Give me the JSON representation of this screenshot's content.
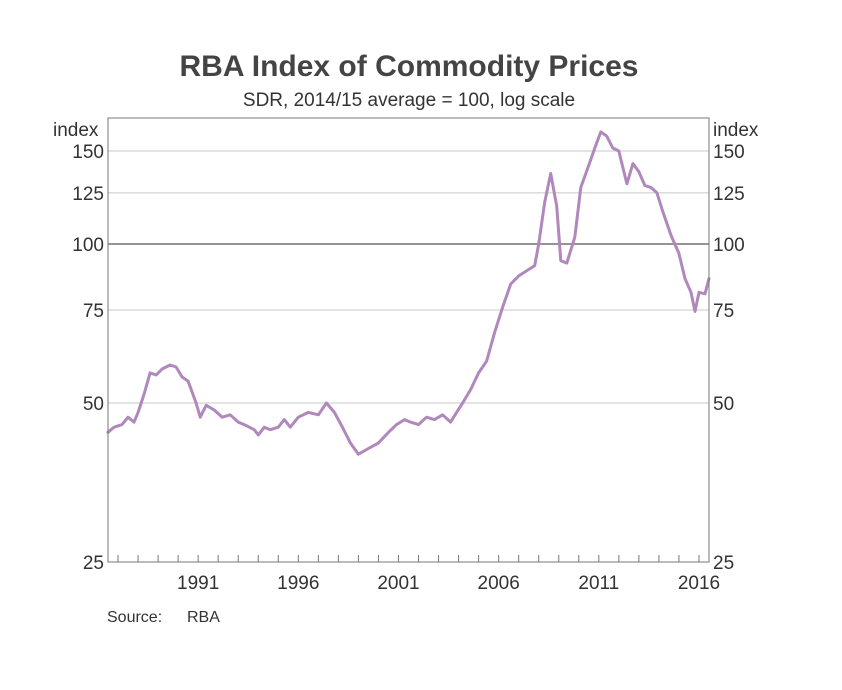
{
  "chart_data": {
    "type": "line",
    "title": "RBA Index of Commodity Prices",
    "subtitle": "SDR, 2014/15 average = 100, log scale",
    "ylabel_left": "index",
    "ylabel_right": "index",
    "y_scale": "log",
    "ylim": [
      25,
      170
    ],
    "yticks": [
      25,
      50,
      75,
      100,
      125,
      150
    ],
    "xlim": [
      1986.5,
      2016.5
    ],
    "xtick_labels": [
      1991,
      1996,
      2001,
      2006,
      2011,
      2016
    ],
    "xtick_minor": [
      1987,
      1988,
      1989,
      1990,
      1991,
      1992,
      1993,
      1994,
      1995,
      1996,
      1997,
      1998,
      1999,
      2000,
      2001,
      2002,
      2003,
      2004,
      2005,
      2006,
      2007,
      2008,
      2009,
      2010,
      2011,
      2012,
      2013,
      2014,
      2015,
      2016
    ],
    "reference_line": 100,
    "grid": true,
    "line_color": "#b088bb",
    "source_label": "Source:",
    "source_value": "RBA",
    "series": [
      {
        "values": [
          [
            1986.5,
            44
          ],
          [
            1986.8,
            45
          ],
          [
            1987.2,
            45.5
          ],
          [
            1987.5,
            47
          ],
          [
            1987.8,
            46
          ],
          [
            1988.0,
            48
          ],
          [
            1988.3,
            52
          ],
          [
            1988.6,
            57
          ],
          [
            1988.9,
            56.5
          ],
          [
            1989.2,
            58
          ],
          [
            1989.6,
            59
          ],
          [
            1989.9,
            58.5
          ],
          [
            1990.2,
            56
          ],
          [
            1990.5,
            55
          ],
          [
            1990.9,
            50
          ],
          [
            1991.1,
            47
          ],
          [
            1991.4,
            49.5
          ],
          [
            1991.8,
            48.5
          ],
          [
            1992.2,
            47
          ],
          [
            1992.6,
            47.5
          ],
          [
            1993.0,
            46
          ],
          [
            1993.3,
            45.5
          ],
          [
            1993.8,
            44.5
          ],
          [
            1994.0,
            43.5
          ],
          [
            1994.3,
            45
          ],
          [
            1994.6,
            44.5
          ],
          [
            1995.0,
            45
          ],
          [
            1995.3,
            46.5
          ],
          [
            1995.6,
            45
          ],
          [
            1996.0,
            47
          ],
          [
            1996.5,
            48
          ],
          [
            1997.0,
            47.5
          ],
          [
            1997.4,
            50
          ],
          [
            1997.8,
            48
          ],
          [
            1998.2,
            45
          ],
          [
            1998.6,
            42
          ],
          [
            1999.0,
            40
          ],
          [
            1999.5,
            41
          ],
          [
            2000.0,
            42
          ],
          [
            2000.5,
            44
          ],
          [
            2000.9,
            45.5
          ],
          [
            2001.3,
            46.5
          ],
          [
            2001.6,
            46
          ],
          [
            2002.0,
            45.5
          ],
          [
            2002.4,
            47
          ],
          [
            2002.8,
            46.5
          ],
          [
            2003.2,
            47.5
          ],
          [
            2003.6,
            46
          ],
          [
            2003.9,
            48
          ],
          [
            2004.2,
            50
          ],
          [
            2004.6,
            53
          ],
          [
            2005.0,
            57
          ],
          [
            2005.4,
            60
          ],
          [
            2005.8,
            68
          ],
          [
            2006.2,
            76
          ],
          [
            2006.6,
            84
          ],
          [
            2007.0,
            87
          ],
          [
            2007.4,
            89
          ],
          [
            2007.8,
            91
          ],
          [
            2008.0,
            100
          ],
          [
            2008.3,
            120
          ],
          [
            2008.6,
            136
          ],
          [
            2008.9,
            118
          ],
          [
            2009.1,
            93
          ],
          [
            2009.4,
            92
          ],
          [
            2009.8,
            103
          ],
          [
            2010.1,
            128
          ],
          [
            2010.5,
            141
          ],
          [
            2010.8,
            152
          ],
          [
            2011.1,
            163
          ],
          [
            2011.4,
            160
          ],
          [
            2011.7,
            152
          ],
          [
            2012.0,
            150
          ],
          [
            2012.4,
            130
          ],
          [
            2012.7,
            142
          ],
          [
            2013.0,
            137
          ],
          [
            2013.3,
            129
          ],
          [
            2013.6,
            128
          ],
          [
            2013.9,
            125
          ],
          [
            2014.2,
            115
          ],
          [
            2014.6,
            104
          ],
          [
            2015.0,
            96
          ],
          [
            2015.3,
            86
          ],
          [
            2015.6,
            81
          ],
          [
            2015.8,
            74.5
          ],
          [
            2016.0,
            81
          ],
          [
            2016.3,
            80.5
          ],
          [
            2016.5,
            86
          ]
        ]
      }
    ]
  }
}
